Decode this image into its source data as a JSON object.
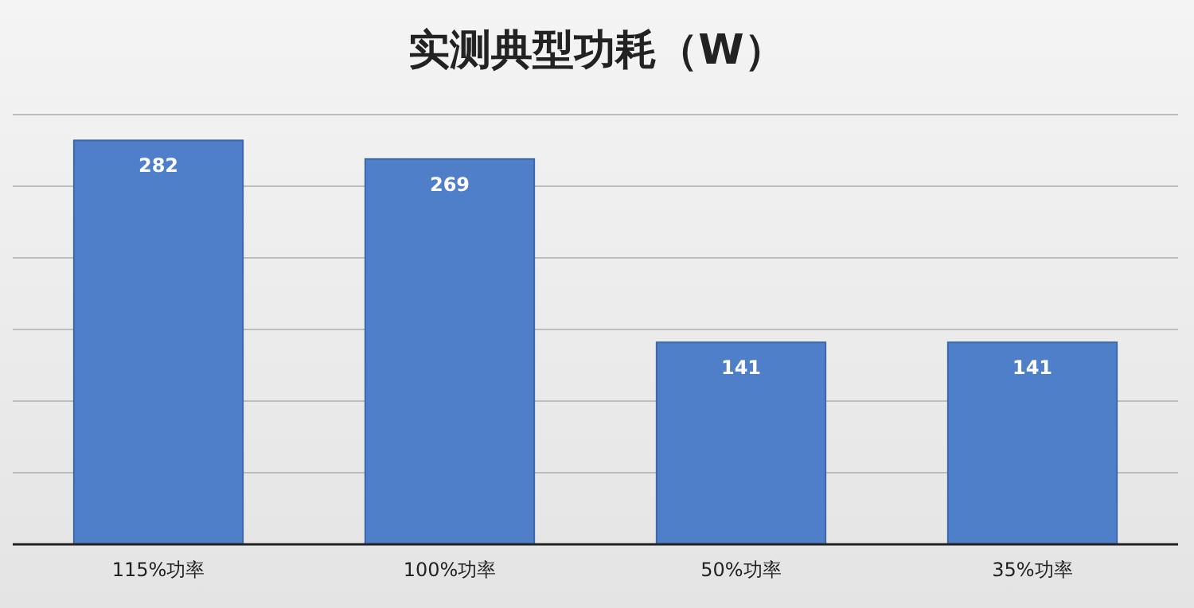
{
  "chart_data": {
    "type": "bar",
    "title": "实测典型功耗（W）",
    "categories": [
      "115%功率",
      "100%功率",
      "50%功率",
      "35%功率"
    ],
    "values": [
      282,
      269,
      141,
      141
    ],
    "color": "#4f7fc9",
    "ylim": [
      0,
      300
    ],
    "yticks": [
      {
        "value": 0,
        "label": null
      },
      {
        "value": 50,
        "label": null
      },
      {
        "value": 100,
        "label": null
      },
      {
        "value": 150,
        "label": null
      },
      {
        "value": 200,
        "label": null
      },
      {
        "value": 250,
        "label": null
      },
      {
        "value": 300,
        "label": null
      }
    ],
    "grid": "y",
    "data_labels": true
  }
}
